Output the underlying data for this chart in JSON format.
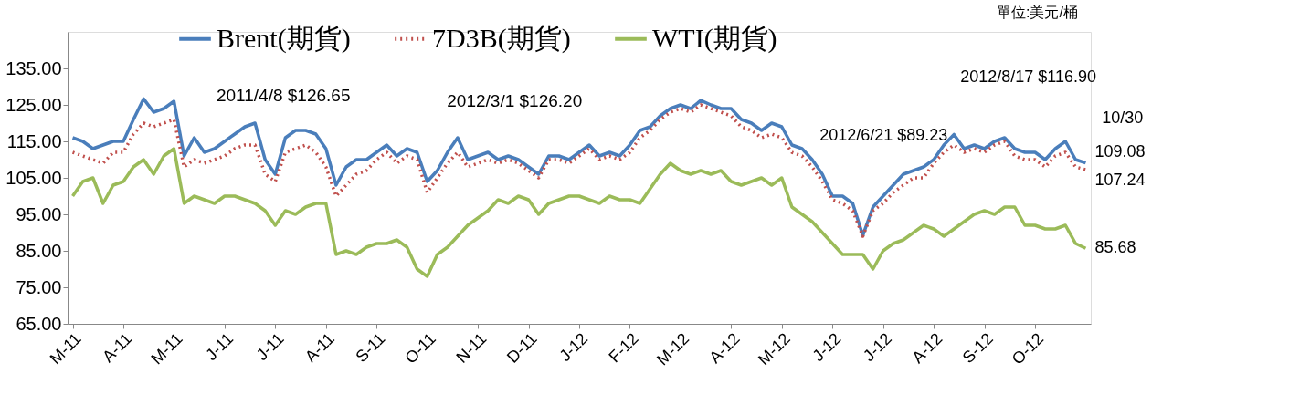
{
  "chart_data": {
    "type": "line",
    "categories": [
      "M-11",
      null,
      null,
      null,
      null,
      "A-11",
      null,
      null,
      null,
      null,
      "M-11",
      null,
      null,
      null,
      null,
      "J-11",
      null,
      null,
      null,
      null,
      "J-11",
      null,
      null,
      null,
      null,
      "A-11",
      null,
      null,
      null,
      null,
      "S-11",
      null,
      null,
      null,
      null,
      "O-11",
      null,
      null,
      null,
      null,
      "N-11",
      null,
      null,
      null,
      null,
      "D-11",
      null,
      null,
      null,
      null,
      "J-12",
      null,
      null,
      null,
      null,
      "F-12",
      null,
      null,
      null,
      null,
      "M-12",
      null,
      null,
      null,
      null,
      "A-12",
      null,
      null,
      null,
      null,
      "M-12",
      null,
      null,
      null,
      null,
      "J-12",
      null,
      null,
      null,
      null,
      "J-12",
      null,
      null,
      null,
      null,
      "A-12",
      null,
      null,
      null,
      null,
      "S-12",
      null,
      null,
      null,
      null,
      "O-12",
      null,
      null,
      null,
      null,
      null
    ],
    "series": [
      {
        "name": "Brent(期貨)",
        "color": "#4a7ebb",
        "line_style": "solid",
        "values": [
          116,
          115,
          113,
          114,
          115,
          115,
          121,
          126.65,
          123,
          124,
          126,
          111,
          116,
          112,
          113,
          115,
          117,
          119,
          120,
          110,
          106,
          116,
          118,
          118,
          117,
          113,
          103,
          108,
          110,
          110,
          112,
          114,
          111,
          113,
          112,
          104,
          107,
          112,
          116,
          110,
          111,
          112,
          110,
          111,
          110,
          108,
          106,
          111,
          111,
          110,
          112,
          114,
          111,
          112,
          111,
          114,
          118,
          119,
          122,
          124,
          125,
          124,
          126.2,
          125,
          124,
          124,
          121,
          120,
          118,
          120,
          119,
          114,
          113,
          110,
          106,
          100,
          100,
          98,
          89.23,
          97,
          100,
          103,
          106,
          107,
          108,
          110,
          114,
          116.9,
          113,
          114,
          113,
          115,
          116,
          113,
          112,
          112,
          110,
          113,
          115,
          110,
          109.08
        ],
        "value_labels": [
          null,
          null,
          null,
          null,
          null,
          null,
          null,
          null,
          null,
          null,
          null,
          null,
          null,
          null,
          null,
          null,
          null,
          null,
          null,
          null,
          null,
          null,
          null,
          null,
          null,
          null,
          null,
          null,
          null,
          null,
          null,
          null,
          null,
          null,
          null,
          null,
          null,
          null,
          null,
          null,
          null,
          null,
          null,
          null,
          null,
          null,
          null,
          null,
          null,
          null,
          null,
          null,
          null,
          null,
          null,
          null,
          null,
          null,
          null,
          null,
          null,
          null,
          null,
          null,
          null,
          null,
          null,
          null,
          null,
          null,
          null,
          null,
          null,
          null,
          null,
          null,
          null,
          null,
          null,
          null,
          null,
          null,
          null,
          null,
          null,
          null,
          null,
          null,
          null,
          null,
          null,
          null,
          null,
          null,
          null,
          null,
          null,
          null,
          null,
          null,
          "109.08"
        ]
      },
      {
        "name": "7D3B(期貨)",
        "color": "#c0504d",
        "line_style": "dotted",
        "values": [
          112,
          111,
          110,
          109,
          112,
          112,
          117,
          120,
          119,
          120,
          121,
          108,
          110,
          109,
          110,
          111,
          113,
          114,
          114,
          106,
          104,
          112,
          113,
          114,
          112,
          108,
          100,
          103,
          106,
          107,
          110,
          112,
          109,
          111,
          110,
          101,
          105,
          109,
          112,
          108,
          109,
          110,
          109,
          110,
          109,
          107,
          105,
          110,
          110,
          109,
          111,
          113,
          110,
          111,
          110,
          112,
          116,
          118,
          121,
          123,
          124,
          123,
          125,
          124,
          123,
          122,
          119,
          118,
          116,
          117,
          116,
          112,
          111,
          108,
          104,
          99,
          98,
          96,
          89,
          96,
          98,
          101,
          103,
          105,
          105,
          109,
          112,
          114,
          112,
          113,
          112,
          114,
          115,
          111,
          110,
          110,
          108,
          111,
          112,
          108,
          107.24
        ],
        "value_labels": [
          null,
          null,
          null,
          null,
          null,
          null,
          null,
          null,
          null,
          null,
          null,
          null,
          null,
          null,
          null,
          null,
          null,
          null,
          null,
          null,
          null,
          null,
          null,
          null,
          null,
          null,
          null,
          null,
          null,
          null,
          null,
          null,
          null,
          null,
          null,
          null,
          null,
          null,
          null,
          null,
          null,
          null,
          null,
          null,
          null,
          null,
          null,
          null,
          null,
          null,
          null,
          null,
          null,
          null,
          null,
          null,
          null,
          null,
          null,
          null,
          null,
          null,
          null,
          null,
          null,
          null,
          null,
          null,
          null,
          null,
          null,
          null,
          null,
          null,
          null,
          null,
          null,
          null,
          null,
          null,
          null,
          null,
          null,
          null,
          null,
          null,
          null,
          null,
          null,
          null,
          null,
          null,
          null,
          null,
          null,
          null,
          null,
          null,
          null,
          null,
          "107.24"
        ]
      },
      {
        "name": "WTI(期貨)",
        "color": "#9bbb59",
        "line_style": "solid",
        "values": [
          100,
          104,
          105,
          98,
          103,
          104,
          108,
          110,
          106,
          111,
          113,
          98,
          100,
          99,
          98,
          100,
          100,
          99,
          98,
          96,
          92,
          96,
          95,
          97,
          98,
          98,
          84,
          85,
          84,
          86,
          87,
          87,
          88,
          86,
          80,
          78,
          84,
          86,
          89,
          92,
          94,
          96,
          99,
          98,
          100,
          99,
          95,
          98,
          99,
          100,
          100,
          99,
          98,
          100,
          99,
          99,
          98,
          102,
          106,
          109,
          107,
          106,
          107,
          106,
          107,
          104,
          103,
          104,
          105,
          103,
          105,
          97,
          95,
          93,
          90,
          87,
          84,
          84,
          84,
          80,
          85,
          87,
          88,
          90,
          92,
          91,
          89,
          91,
          93,
          95,
          96,
          95,
          97,
          97,
          92,
          92,
          91,
          91,
          92,
          87,
          85.68
        ],
        "value_labels": [
          null,
          null,
          null,
          null,
          null,
          null,
          null,
          null,
          null,
          null,
          null,
          null,
          null,
          null,
          null,
          null,
          null,
          null,
          null,
          null,
          null,
          null,
          null,
          null,
          null,
          null,
          null,
          null,
          null,
          null,
          null,
          null,
          null,
          null,
          null,
          null,
          null,
          null,
          null,
          null,
          null,
          null,
          null,
          null,
          null,
          null,
          null,
          null,
          null,
          null,
          null,
          null,
          null,
          null,
          null,
          null,
          null,
          null,
          null,
          null,
          null,
          null,
          null,
          null,
          null,
          null,
          null,
          null,
          null,
          null,
          null,
          null,
          null,
          null,
          null,
          null,
          null,
          null,
          null,
          null,
          null,
          null,
          null,
          null,
          null,
          null,
          null,
          null,
          null,
          null,
          null,
          null,
          null,
          null,
          null,
          null,
          null,
          null,
          null,
          null,
          "85.68"
        ]
      }
    ],
    "ylim": [
      65,
      145
    ],
    "yticks": [
      {
        "value": 65,
        "label": "65.00"
      },
      {
        "value": 75,
        "label": "75.00"
      },
      {
        "value": 85,
        "label": "85.00"
      },
      {
        "value": 95,
        "label": "95.00"
      },
      {
        "value": 105,
        "label": "105.00"
      },
      {
        "value": 115,
        "label": "115.00"
      },
      {
        "value": 125,
        "label": "125.00"
      },
      {
        "value": 135,
        "label": "135.00"
      }
    ],
    "annotations": [
      "單位:美元/桶",
      "2011/4/8 $126.65",
      "2012/3/1 $126.20",
      "2012/6/21 $89.23",
      "2012/8/17 $116.90",
      "10/30"
    ],
    "grid": false,
    "legend": "top",
    "marker": "none"
  }
}
